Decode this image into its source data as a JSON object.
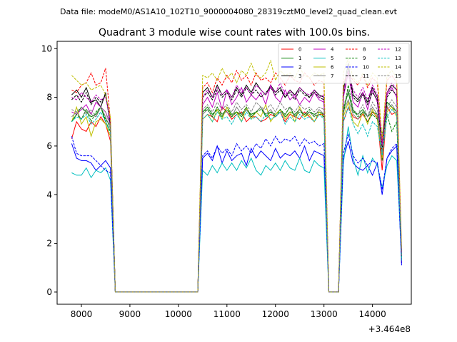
{
  "suptitle": "Data file: modeM0/AS1A10_102T10_9000004080_28319cztM0_level2_quad_clean.evt",
  "chart_data": {
    "type": "line",
    "title": "Quadrant 3 module wise count rates with 100.0s bins.",
    "xlabel": "",
    "ylabel": "",
    "x_offset_label": "+3.464e8",
    "xlim": [
      7500,
      14800
    ],
    "ylim": [
      -0.5,
      10.3
    ],
    "xticks": [
      8000,
      9000,
      10000,
      11000,
      12000,
      13000,
      14000
    ],
    "yticks": [
      0,
      2,
      4,
      6,
      8,
      10
    ],
    "x": [
      7800,
      7900,
      8000,
      8100,
      8200,
      8300,
      8400,
      8500,
      8600,
      8700,
      8800,
      10400,
      10500,
      10600,
      10700,
      10800,
      10900,
      11000,
      11100,
      11200,
      11300,
      11400,
      11500,
      11600,
      11700,
      11800,
      11900,
      12000,
      12100,
      12200,
      12300,
      12400,
      12500,
      12600,
      12700,
      12800,
      12900,
      13000,
      13100,
      13200,
      13300,
      13400,
      13500,
      13600,
      13700,
      13800,
      13900,
      14000,
      14100,
      14200,
      14300,
      14400,
      14500,
      14600
    ],
    "series": [
      {
        "name": "0",
        "color": "#ff0000",
        "dash": false,
        "values": [
          6.3,
          7.0,
          6.7,
          6.6,
          7.0,
          6.8,
          7.2,
          6.9,
          6.2,
          0,
          0,
          0,
          7.1,
          7.3,
          7.2,
          7.0,
          7.6,
          7.4,
          7.1,
          7.3,
          7.4,
          7.0,
          7.2,
          7.2,
          7.0,
          7.1,
          7.3,
          7.2,
          7.4,
          7.0,
          7.3,
          7.2,
          7.1,
          7.4,
          7.2,
          7.0,
          7.3,
          7.3,
          0,
          0,
          0,
          7.0,
          7.6,
          7.2,
          7.1,
          7.3,
          7.0,
          7.4,
          7.2,
          5.0,
          7.6,
          7.3,
          7.4,
          1.2
        ]
      },
      {
        "name": "1",
        "color": "#008000",
        "dash": false,
        "values": [
          7.0,
          7.3,
          7.6,
          7.4,
          7.2,
          7.3,
          7.6,
          7.0,
          6.6,
          0,
          0,
          0,
          7.4,
          7.6,
          7.3,
          7.5,
          7.2,
          7.6,
          7.3,
          7.4,
          7.2,
          7.5,
          7.3,
          7.4,
          7.6,
          7.2,
          7.4,
          7.3,
          7.5,
          7.2,
          7.4,
          7.3,
          7.5,
          7.2,
          7.4,
          7.3,
          7.4,
          7.3,
          0,
          0,
          0,
          7.5,
          8.2,
          7.4,
          7.3,
          7.5,
          7.2,
          7.4,
          7.3,
          5.4,
          7.8,
          7.6,
          7.4,
          1.5
        ]
      },
      {
        "name": "2",
        "color": "#0000ff",
        "dash": false,
        "values": [
          6.1,
          5.5,
          5.4,
          5.4,
          5.3,
          5.0,
          5.2,
          5.4,
          5.1,
          0,
          0,
          0,
          5.5,
          5.7,
          5.4,
          6.0,
          5.3,
          5.8,
          5.4,
          5.6,
          5.7,
          5.2,
          5.9,
          5.5,
          5.8,
          5.6,
          5.4,
          5.9,
          5.5,
          5.7,
          5.6,
          5.8,
          5.5,
          6.0,
          5.4,
          5.8,
          5.7,
          5.6,
          0,
          0,
          0,
          5.5,
          6.2,
          5.3,
          5.1,
          5.0,
          5.2,
          4.8,
          5.3,
          4.0,
          5.5,
          5.8,
          6.0,
          1.1
        ]
      },
      {
        "name": "3",
        "color": "#000000",
        "dash": false,
        "values": [
          8.1,
          8.3,
          8.0,
          8.4,
          7.8,
          7.9,
          7.6,
          8.2,
          6.8,
          0,
          0,
          0,
          8.2,
          8.4,
          8.0,
          8.5,
          8.1,
          8.3,
          8.0,
          8.4,
          8.1,
          8.5,
          8.2,
          8.6,
          8.3,
          8.1,
          8.5,
          8.2,
          8.4,
          8.0,
          8.3,
          8.1,
          8.4,
          8.2,
          8.0,
          8.3,
          8.1,
          8.0,
          0,
          0,
          0,
          8.3,
          9.4,
          8.1,
          7.9,
          8.2,
          7.8,
          8.4,
          8.0,
          5.9,
          8.2,
          8.5,
          8.3,
          1.4
        ]
      },
      {
        "name": "4",
        "color": "#bf00bf",
        "dash": false,
        "values": [
          7.4,
          7.3,
          7.5,
          7.7,
          7.3,
          7.8,
          7.6,
          7.4,
          6.9,
          0,
          0,
          0,
          7.7,
          8.0,
          7.6,
          8.2,
          7.5,
          8.3,
          7.7,
          8.0,
          8.4,
          7.8,
          8.1,
          7.9,
          8.2,
          7.7,
          8.5,
          8.0,
          7.8,
          8.3,
          7.9,
          8.1,
          7.7,
          8.0,
          7.8,
          8.2,
          7.9,
          7.8,
          0,
          0,
          0,
          8.0,
          9.0,
          7.8,
          7.6,
          8.2,
          7.5,
          8.3,
          7.8,
          6.0,
          8.1,
          8.4,
          8.0,
          1.6
        ]
      },
      {
        "name": "5",
        "color": "#00bfbf",
        "dash": false,
        "values": [
          4.9,
          4.8,
          4.8,
          5.1,
          4.7,
          5.0,
          4.9,
          5.1,
          4.6,
          0,
          0,
          0,
          5.0,
          4.8,
          5.2,
          4.9,
          5.3,
          5.0,
          5.3,
          5.0,
          5.4,
          5.1,
          5.5,
          5.0,
          4.8,
          5.2,
          5.0,
          5.3,
          5.0,
          5.4,
          5.1,
          5.0,
          5.5,
          5.0,
          4.9,
          5.4,
          5.2,
          5.1,
          0,
          0,
          0,
          5.3,
          6.8,
          5.5,
          4.8,
          5.6,
          4.9,
          5.5,
          5.2,
          4.3,
          5.2,
          5.6,
          5.4,
          1.5
        ]
      },
      {
        "name": "6",
        "color": "#bfbf00",
        "dash": false,
        "values": [
          7.0,
          7.6,
          6.9,
          7.2,
          6.4,
          7.0,
          7.1,
          6.9,
          6.4,
          0,
          0,
          0,
          7.1,
          7.3,
          7.0,
          7.5,
          7.1,
          7.6,
          7.2,
          7.4,
          7.0,
          7.6,
          7.1,
          7.4,
          7.2,
          7.7,
          7.0,
          7.3,
          7.5,
          7.1,
          7.4,
          7.0,
          7.6,
          7.2,
          7.3,
          7.0,
          7.4,
          7.2,
          0,
          0,
          0,
          7.2,
          7.8,
          7.0,
          6.8,
          7.4,
          6.9,
          7.5,
          7.1,
          5.5,
          7.4,
          7.6,
          7.2,
          1.3
        ]
      },
      {
        "name": "7",
        "color": "#808080",
        "dash": false,
        "values": [
          7.2,
          7.4,
          7.1,
          7.5,
          7.3,
          7.2,
          7.6,
          7.2,
          6.7,
          0,
          0,
          0,
          7.3,
          7.5,
          7.2,
          7.6,
          7.3,
          7.4,
          7.2,
          7.6,
          7.3,
          7.5,
          7.2,
          7.4,
          7.6,
          7.3,
          7.5,
          7.2,
          7.4,
          7.3,
          7.6,
          7.2,
          7.5,
          7.3,
          7.4,
          7.2,
          7.5,
          7.3,
          0,
          0,
          0,
          7.4,
          7.9,
          7.3,
          7.1,
          7.4,
          7.2,
          7.6,
          7.3,
          5.7,
          7.5,
          7.7,
          7.4,
          1.4
        ]
      },
      {
        "name": "8",
        "color": "#ff0000",
        "dash": true,
        "values": [
          8.3,
          8.2,
          8.5,
          8.6,
          9.0,
          8.5,
          8.6,
          9.2,
          7.0,
          0,
          0,
          0,
          8.4,
          8.6,
          8.2,
          8.8,
          8.5,
          8.9,
          8.6,
          9.1,
          8.7,
          8.9,
          8.5,
          9.0,
          8.7,
          8.8,
          8.6,
          9.0,
          8.8,
          8.5,
          8.9,
          8.7,
          8.6,
          9.0,
          8.8,
          8.5,
          8.7,
          8.6,
          0,
          0,
          0,
          8.6,
          9.0,
          8.7,
          8.5,
          8.9,
          8.4,
          8.8,
          8.6,
          6.2,
          8.7,
          8.9,
          8.6,
          1.7
        ]
      },
      {
        "name": "9",
        "color": "#008000",
        "dash": true,
        "values": [
          7.0,
          7.3,
          7.1,
          7.5,
          7.0,
          7.4,
          7.6,
          7.1,
          6.8,
          0,
          0,
          0,
          7.4,
          7.5,
          7.2,
          7.6,
          7.3,
          7.5,
          7.2,
          7.4,
          7.3,
          7.6,
          7.2,
          7.4,
          7.5,
          7.3,
          7.4,
          7.2,
          7.5,
          7.3,
          7.6,
          7.2,
          7.4,
          7.3,
          7.5,
          7.2,
          7.3,
          7.2,
          0,
          0,
          0,
          7.3,
          8.5,
          7.5,
          7.2,
          7.4,
          7.0,
          7.3,
          7.1,
          6.5,
          7.3,
          6.6,
          7.0,
          1.4
        ]
      },
      {
        "name": "10",
        "color": "#0000ff",
        "dash": true,
        "values": [
          6.4,
          5.7,
          5.6,
          5.6,
          5.6,
          5.4,
          5.2,
          5.0,
          4.9,
          0,
          0,
          0,
          5.6,
          5.8,
          5.5,
          6.0,
          5.7,
          5.9,
          5.6,
          6.1,
          5.8,
          6.0,
          5.7,
          6.1,
          5.9,
          6.3,
          6.0,
          6.4,
          6.1,
          6.3,
          6.2,
          6.4,
          6.0,
          6.3,
          6.1,
          6.2,
          6.0,
          6.1,
          0,
          0,
          0,
          5.7,
          6.5,
          5.6,
          5.3,
          5.5,
          5.2,
          5.4,
          5.3,
          4.2,
          5.5,
          5.9,
          6.1,
          1.2
        ]
      },
      {
        "name": "11",
        "color": "#000000",
        "dash": true,
        "values": [
          7.9,
          8.1,
          7.8,
          8.2,
          7.7,
          8.0,
          7.8,
          8.1,
          6.9,
          0,
          0,
          0,
          8.0,
          8.2,
          7.9,
          8.3,
          8.0,
          8.2,
          7.9,
          8.3,
          8.0,
          8.4,
          8.1,
          8.3,
          8.0,
          8.2,
          8.4,
          8.1,
          8.3,
          8.0,
          8.2,
          7.9,
          8.3,
          8.1,
          8.0,
          8.2,
          8.0,
          7.9,
          0,
          0,
          0,
          8.1,
          9.2,
          8.0,
          7.8,
          8.1,
          7.7,
          8.2,
          7.9,
          5.8,
          8.0,
          8.3,
          8.1,
          1.5
        ]
      },
      {
        "name": "12",
        "color": "#bf00bf",
        "dash": true,
        "values": [
          8.0,
          7.9,
          8.2,
          8.0,
          7.8,
          8.1,
          7.9,
          8.0,
          7.0,
          0,
          0,
          0,
          8.0,
          8.3,
          8.0,
          8.4,
          8.1,
          8.3,
          8.0,
          8.5,
          8.2,
          8.4,
          8.1,
          8.5,
          8.3,
          8.1,
          8.4,
          8.2,
          8.6,
          8.1,
          8.3,
          8.0,
          8.4,
          8.2,
          8.1,
          8.3,
          8.0,
          8.1,
          0,
          0,
          0,
          8.2,
          9.1,
          8.3,
          8.0,
          8.4,
          7.9,
          8.5,
          8.1,
          6.1,
          8.2,
          8.6,
          8.3,
          1.6
        ]
      },
      {
        "name": "13",
        "color": "#00bfbf",
        "dash": true,
        "values": [
          7.0,
          7.2,
          7.1,
          7.3,
          6.9,
          7.1,
          7.4,
          7.0,
          6.5,
          0,
          0,
          0,
          7.1,
          7.3,
          7.0,
          7.4,
          7.1,
          7.2,
          6.9,
          7.3,
          7.0,
          7.4,
          7.1,
          7.2,
          7.0,
          7.3,
          7.1,
          7.2,
          7.4,
          6.9,
          7.2,
          7.0,
          7.3,
          7.1,
          7.2,
          7.0,
          7.3,
          7.1,
          0,
          0,
          0,
          7.0,
          7.6,
          6.9,
          6.5,
          6.9,
          6.4,
          7.0,
          6.8,
          5.6,
          7.2,
          7.5,
          7.3,
          1.3
        ]
      },
      {
        "name": "14",
        "color": "#bfbf00",
        "dash": true,
        "values": [
          8.9,
          8.7,
          8.5,
          8.6,
          8.3,
          8.4,
          8.5,
          8.1,
          7.2,
          0,
          0,
          0,
          8.9,
          8.8,
          9.0,
          8.7,
          9.2,
          8.8,
          9.0,
          8.6,
          9.1,
          8.9,
          9.4,
          8.9,
          8.8,
          9.0,
          9.5,
          8.7,
          9.1,
          8.9,
          9.0,
          8.8,
          9.2,
          8.9,
          8.8,
          9.0,
          8.9,
          9.0,
          0,
          0,
          0,
          9.0,
          9.6,
          8.8,
          8.6,
          9.0,
          8.5,
          9.0,
          8.8,
          6.3,
          8.9,
          9.1,
          8.8,
          1.8
        ]
      },
      {
        "name": "15",
        "color": "#808080",
        "dash": true,
        "values": [
          7.5,
          7.4,
          7.6,
          7.3,
          7.5,
          7.2,
          7.6,
          7.4,
          6.8,
          0,
          0,
          0,
          7.5,
          7.7,
          7.4,
          7.8,
          7.5,
          7.7,
          7.4,
          7.8,
          7.5,
          7.7,
          7.4,
          7.8,
          7.6,
          7.5,
          7.7,
          7.4,
          7.8,
          7.5,
          7.6,
          7.4,
          7.7,
          7.5,
          7.6,
          7.4,
          7.6,
          7.5,
          0,
          0,
          0,
          7.6,
          8.3,
          7.5,
          7.3,
          7.7,
          7.2,
          7.8,
          7.5,
          5.8,
          7.6,
          7.9,
          7.6,
          1.5
        ]
      }
    ]
  }
}
